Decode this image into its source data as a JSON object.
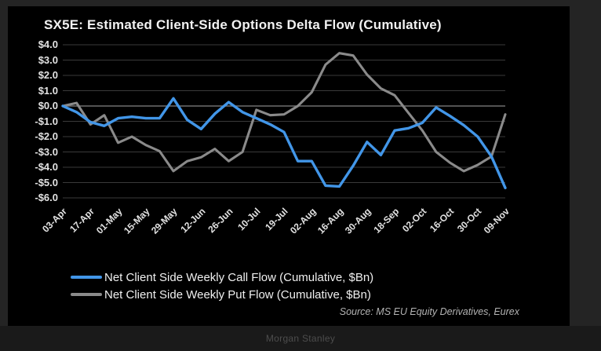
{
  "title": "SX5E: Estimated Client-Side Options Delta Flow (Cumulative)",
  "footer": {
    "brand": "Morgan Stanley"
  },
  "colors": {
    "chart_background": "#000000",
    "page_background": "#242424",
    "gridline": "#3a3a3a",
    "zero_line": "#6f6f6f",
    "axis_text": "#e2e2e2",
    "call_line": "#4296e8",
    "put_line": "#8a8a8a"
  },
  "chart_data": {
    "type": "line",
    "title": "SX5E: Estimated Client-Side Options Delta Flow (Cumulative)",
    "xlabel": "",
    "ylabel": "",
    "ylim": [
      -6.0,
      4.0
    ],
    "y_tick_step": 1.0,
    "grid": true,
    "legend_position": "bottom-left",
    "source_note": "Source: MS EU Equity Derivatives, Eurex",
    "y_tick_labels": [
      "$4.0",
      "$3.0",
      "$2.0",
      "$1.0",
      "$0.0",
      "-$1.0",
      "-$2.0",
      "-$3.0",
      "-$4.0",
      "-$5.0",
      "-$6.0"
    ],
    "x_tick_labels": [
      "03-Apr",
      "17-Apr",
      "01-May",
      "15-May",
      "29-May",
      "12-Jun",
      "26-Jun",
      "10-Jul",
      "19-Jul",
      "02-Aug",
      "16-Aug",
      "30-Aug",
      "18-Sep",
      "02-Oct",
      "16-Oct",
      "30-Oct",
      "09-Nov"
    ],
    "points_per_tick": 2,
    "series": [
      {
        "name": "Net Client Side Weekly Call Flow (Cumulative, $Bn)",
        "color": "#4296e8",
        "values": [
          0.0,
          -0.4,
          -1.05,
          -1.3,
          -0.8,
          -0.7,
          -0.8,
          -0.8,
          0.5,
          -0.9,
          -1.5,
          -0.5,
          0.25,
          -0.4,
          -0.8,
          -1.2,
          -1.7,
          -3.6,
          -3.6,
          -5.2,
          -5.25,
          -3.9,
          -2.35,
          -3.2,
          -1.6,
          -1.45,
          -1.1,
          -0.1,
          -0.65,
          -1.25,
          -2.0,
          -3.3,
          -5.35
        ]
      },
      {
        "name": "Net Client Side Weekly Put Flow (Cumulative, $Bn)",
        "color": "#8a8a8a",
        "values": [
          0.0,
          0.2,
          -1.2,
          -0.6,
          -2.4,
          -2.0,
          -2.55,
          -2.95,
          -4.25,
          -3.6,
          -3.35,
          -2.8,
          -3.6,
          -3.0,
          -0.25,
          -0.6,
          -0.55,
          0.0,
          0.9,
          2.7,
          3.45,
          3.3,
          2.05,
          1.15,
          0.7,
          -0.45,
          -1.6,
          -3.0,
          -3.7,
          -4.25,
          -3.85,
          -3.3,
          -0.55
        ]
      }
    ]
  }
}
